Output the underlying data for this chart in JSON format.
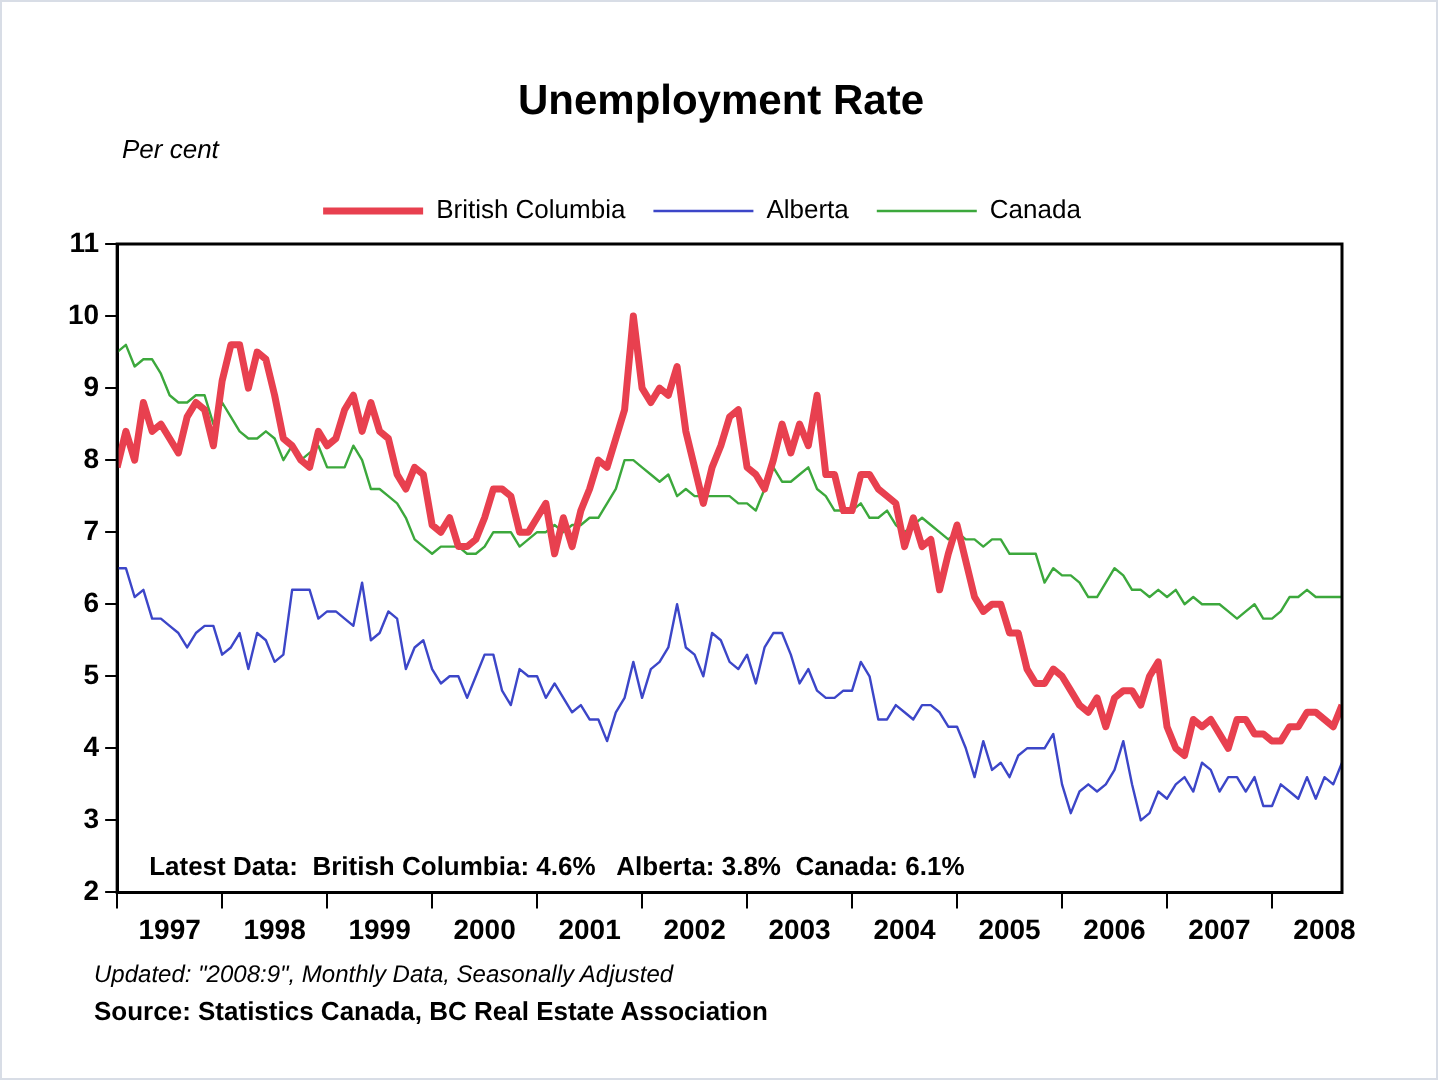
{
  "chart_data": {
    "type": "line",
    "title": "Unemployment Rate",
    "ylabel": "Per cent",
    "annotations": [
      "Latest Data:  British Columbia: 4.6%   Alberta: 3.8%  Canada: 6.1%",
      "Updated: \"2008:9\", Monthly Data, Seasonally Adjusted",
      "Source: Statistics Canada, BC Real Estate Association"
    ],
    "x": [
      "1997-01",
      "1997-02",
      "1997-03",
      "1997-04",
      "1997-05",
      "1997-06",
      "1997-07",
      "1997-08",
      "1997-09",
      "1997-10",
      "1997-11",
      "1997-12",
      "1998-01",
      "1998-02",
      "1998-03",
      "1998-04",
      "1998-05",
      "1998-06",
      "1998-07",
      "1998-08",
      "1998-09",
      "1998-10",
      "1998-11",
      "1998-12",
      "1999-01",
      "1999-02",
      "1999-03",
      "1999-04",
      "1999-05",
      "1999-06",
      "1999-07",
      "1999-08",
      "1999-09",
      "1999-10",
      "1999-11",
      "1999-12",
      "2000-01",
      "2000-02",
      "2000-03",
      "2000-04",
      "2000-05",
      "2000-06",
      "2000-07",
      "2000-08",
      "2000-09",
      "2000-10",
      "2000-11",
      "2000-12",
      "2001-01",
      "2001-02",
      "2001-03",
      "2001-04",
      "2001-05",
      "2001-06",
      "2001-07",
      "2001-08",
      "2001-09",
      "2001-10",
      "2001-11",
      "2001-12",
      "2002-01",
      "2002-02",
      "2002-03",
      "2002-04",
      "2002-05",
      "2002-06",
      "2002-07",
      "2002-08",
      "2002-09",
      "2002-10",
      "2002-11",
      "2002-12",
      "2003-01",
      "2003-02",
      "2003-03",
      "2003-04",
      "2003-05",
      "2003-06",
      "2003-07",
      "2003-08",
      "2003-09",
      "2003-10",
      "2003-11",
      "2003-12",
      "2004-01",
      "2004-02",
      "2004-03",
      "2004-04",
      "2004-05",
      "2004-06",
      "2004-07",
      "2004-08",
      "2004-09",
      "2004-10",
      "2004-11",
      "2004-12",
      "2005-01",
      "2005-02",
      "2005-03",
      "2005-04",
      "2005-05",
      "2005-06",
      "2005-07",
      "2005-08",
      "2005-09",
      "2005-10",
      "2005-11",
      "2005-12",
      "2006-01",
      "2006-02",
      "2006-03",
      "2006-04",
      "2006-05",
      "2006-06",
      "2006-07",
      "2006-08",
      "2006-09",
      "2006-10",
      "2006-11",
      "2006-12",
      "2007-01",
      "2007-02",
      "2007-03",
      "2007-04",
      "2007-05",
      "2007-06",
      "2007-07",
      "2007-08",
      "2007-09",
      "2007-10",
      "2007-11",
      "2007-12",
      "2008-01",
      "2008-02",
      "2008-03",
      "2008-04",
      "2008-05",
      "2008-06",
      "2008-07",
      "2008-08",
      "2008-09"
    ],
    "series": [
      {
        "name": "British Columbia",
        "color": "#e8404f",
        "values": [
          7.9,
          8.4,
          8.0,
          8.8,
          8.4,
          8.5,
          8.3,
          8.1,
          8.6,
          8.8,
          8.7,
          8.2,
          9.1,
          9.6,
          9.6,
          9.0,
          9.5,
          9.4,
          8.9,
          8.3,
          8.2,
          8.0,
          7.9,
          8.4,
          8.2,
          8.3,
          8.7,
          8.9,
          8.4,
          8.8,
          8.4,
          8.3,
          7.8,
          7.6,
          7.9,
          7.8,
          7.1,
          7.0,
          7.2,
          6.8,
          6.8,
          6.9,
          7.2,
          7.6,
          7.6,
          7.5,
          7.0,
          7.0,
          7.2,
          7.4,
          6.7,
          7.2,
          6.8,
          7.3,
          7.6,
          8.0,
          7.9,
          8.3,
          8.7,
          10.0,
          9.0,
          8.8,
          9.0,
          8.9,
          9.3,
          8.4,
          7.9,
          7.4,
          7.9,
          8.2,
          8.6,
          8.7,
          7.9,
          7.8,
          7.6,
          8.0,
          8.5,
          8.1,
          8.5,
          8.2,
          8.9,
          7.8,
          7.8,
          7.3,
          7.3,
          7.8,
          7.8,
          7.6,
          7.5,
          7.4,
          6.8,
          7.2,
          6.8,
          6.9,
          6.2,
          6.7,
          7.1,
          6.6,
          6.1,
          5.9,
          6.0,
          6.0,
          5.6,
          5.6,
          5.1,
          4.9,
          4.9,
          5.1,
          5.0,
          4.8,
          4.6,
          4.5,
          4.7,
          4.3,
          4.7,
          4.8,
          4.8,
          4.6,
          5.0,
          5.2,
          4.3,
          4.0,
          3.9,
          4.4,
          4.3,
          4.4,
          4.2,
          4.0,
          4.4,
          4.4,
          4.2,
          4.2,
          4.1,
          4.1,
          4.3,
          4.3,
          4.5,
          4.5,
          4.4,
          4.3,
          4.6
        ]
      },
      {
        "name": "Alberta",
        "color": "#3c46c8",
        "values": [
          6.5,
          6.5,
          6.1,
          6.2,
          5.8,
          5.8,
          5.7,
          5.6,
          5.4,
          5.6,
          5.7,
          5.7,
          5.3,
          5.4,
          5.6,
          5.1,
          5.6,
          5.5,
          5.2,
          5.3,
          6.2,
          6.2,
          6.2,
          5.8,
          5.9,
          5.9,
          5.8,
          5.7,
          6.3,
          5.5,
          5.6,
          5.9,
          5.8,
          5.1,
          5.4,
          5.5,
          5.1,
          4.9,
          5.0,
          5.0,
          4.7,
          5.0,
          5.3,
          5.3,
          4.8,
          4.6,
          5.1,
          5.0,
          5.0,
          4.7,
          4.9,
          4.7,
          4.5,
          4.6,
          4.4,
          4.4,
          4.1,
          4.5,
          4.7,
          5.2,
          4.7,
          5.1,
          5.2,
          5.4,
          6.0,
          5.4,
          5.3,
          5.0,
          5.6,
          5.5,
          5.2,
          5.1,
          5.3,
          4.9,
          5.4,
          5.6,
          5.6,
          5.3,
          4.9,
          5.1,
          4.8,
          4.7,
          4.7,
          4.8,
          4.8,
          5.2,
          5.0,
          4.4,
          4.4,
          4.6,
          4.5,
          4.4,
          4.6,
          4.6,
          4.5,
          4.3,
          4.3,
          4.0,
          3.6,
          4.1,
          3.7,
          3.8,
          3.6,
          3.9,
          4.0,
          4.0,
          4.0,
          4.2,
          3.5,
          3.1,
          3.4,
          3.5,
          3.4,
          3.5,
          3.7,
          4.1,
          3.5,
          3.0,
          3.1,
          3.4,
          3.3,
          3.5,
          3.6,
          3.4,
          3.8,
          3.7,
          3.4,
          3.6,
          3.6,
          3.4,
          3.6,
          3.2,
          3.2,
          3.5,
          3.4,
          3.3,
          3.6,
          3.3,
          3.6,
          3.5,
          3.8
        ]
      },
      {
        "name": "Canada",
        "color": "#3ca83c",
        "values": [
          9.5,
          9.6,
          9.3,
          9.4,
          9.4,
          9.2,
          8.9,
          8.8,
          8.8,
          8.9,
          8.9,
          8.5,
          8.8,
          8.6,
          8.4,
          8.3,
          8.3,
          8.4,
          8.3,
          8.0,
          8.2,
          8.0,
          8.1,
          8.2,
          7.9,
          7.9,
          7.9,
          8.2,
          8.0,
          7.6,
          7.6,
          7.5,
          7.4,
          7.2,
          6.9,
          6.8,
          6.7,
          6.8,
          6.8,
          6.8,
          6.7,
          6.7,
          6.8,
          7.0,
          7.0,
          7.0,
          6.8,
          6.9,
          7.0,
          7.0,
          7.1,
          7.0,
          7.1,
          7.1,
          7.2,
          7.2,
          7.4,
          7.6,
          8.0,
          8.0,
          7.9,
          7.8,
          7.7,
          7.8,
          7.5,
          7.6,
          7.5,
          7.5,
          7.5,
          7.5,
          7.5,
          7.4,
          7.4,
          7.3,
          7.6,
          7.9,
          7.7,
          7.7,
          7.8,
          7.9,
          7.6,
          7.5,
          7.3,
          7.3,
          7.3,
          7.4,
          7.2,
          7.2,
          7.3,
          7.1,
          7.0,
          7.1,
          7.2,
          7.1,
          7.0,
          6.9,
          7.0,
          6.9,
          6.9,
          6.8,
          6.9,
          6.9,
          6.7,
          6.7,
          6.7,
          6.7,
          6.3,
          6.5,
          6.4,
          6.4,
          6.3,
          6.1,
          6.1,
          6.3,
          6.5,
          6.4,
          6.2,
          6.2,
          6.1,
          6.2,
          6.1,
          6.2,
          6.0,
          6.1,
          6.0,
          6.0,
          6.0,
          5.9,
          5.8,
          5.9,
          6.0,
          5.8,
          5.8,
          5.9,
          6.1,
          6.1,
          6.2,
          6.1,
          6.1,
          6.1,
          6.1
        ]
      }
    ],
    "xlim": [
      "1997-01",
      "2008-09"
    ],
    "xticks": [
      {
        "value": "1997-01",
        "label": null
      },
      {
        "value": "1997-07",
        "label": "1997"
      },
      {
        "value": "1998-01",
        "label": null
      },
      {
        "value": "1998-07",
        "label": "1998"
      },
      {
        "value": "1999-01",
        "label": null
      },
      {
        "value": "1999-07",
        "label": "1999"
      },
      {
        "value": "2000-01",
        "label": null
      },
      {
        "value": "2000-07",
        "label": "2000"
      },
      {
        "value": "2001-01",
        "label": null
      },
      {
        "value": "2001-07",
        "label": "2001"
      },
      {
        "value": "2002-01",
        "label": null
      },
      {
        "value": "2002-07",
        "label": "2002"
      },
      {
        "value": "2003-01",
        "label": null
      },
      {
        "value": "2003-07",
        "label": "2003"
      },
      {
        "value": "2004-01",
        "label": null
      },
      {
        "value": "2004-07",
        "label": "2004"
      },
      {
        "value": "2005-01",
        "label": null
      },
      {
        "value": "2005-07",
        "label": "2005"
      },
      {
        "value": "2006-01",
        "label": null
      },
      {
        "value": "2006-07",
        "label": "2006"
      },
      {
        "value": "2007-01",
        "label": null
      },
      {
        "value": "2007-07",
        "label": "2007"
      },
      {
        "value": "2008-01",
        "label": null
      },
      {
        "value": "2008-07",
        "label": "2008"
      }
    ],
    "ylim": [
      2,
      11
    ],
    "yticks": [
      2,
      3,
      4,
      5,
      6,
      7,
      8,
      9,
      10,
      11
    ],
    "grid": false,
    "legend": "top",
    "marker": "none",
    "line_style": "solid"
  }
}
